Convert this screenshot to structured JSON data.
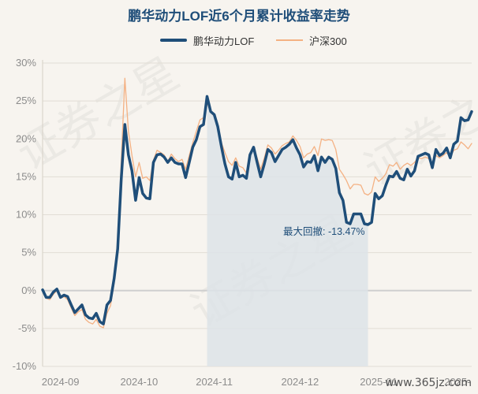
{
  "chart_data": {
    "type": "line",
    "title": "鹏华动力LOF近6个月累计收益率走势",
    "ylim": [
      -10,
      30
    ],
    "yticks": [
      "30%",
      "25%",
      "20%",
      "15%",
      "10%",
      "5%",
      "0%",
      "-5%",
      "-10%"
    ],
    "xticks": [
      "2024-09",
      "2024-10",
      "2024-11",
      "2024-12",
      "2025-01",
      "2025-"
    ],
    "grid": true,
    "legend_position": "top-center",
    "series": [
      {
        "name": "鹏华动力LOF",
        "color": "#1f4e79",
        "values": [
          0.1,
          -0.9,
          -0.9,
          -0.2,
          0.2,
          -0.9,
          -0.6,
          -0.8,
          -1.9,
          -2.9,
          -2.4,
          -1.9,
          -3.2,
          -3.6,
          -3.7,
          -3.0,
          -4.1,
          -4.4,
          -1.9,
          -1.3,
          1.6,
          5.5,
          14.7,
          21.9,
          17.9,
          15.8,
          11.9,
          14.9,
          12.8,
          12.2,
          12.1,
          16.9,
          17.9,
          18.0,
          17.6,
          16.9,
          17.5,
          16.9,
          16.7,
          16.7,
          14.9,
          16.9,
          18.9,
          19.9,
          21.6,
          21.9,
          25.6,
          23.6,
          23.2,
          21.6,
          19.0,
          16.7,
          15.0,
          14.7,
          16.9,
          15.0,
          15.2,
          14.8,
          17.9,
          18.9,
          16.9,
          15.0,
          16.7,
          18.6,
          18.2,
          17.0,
          17.8,
          18.6,
          18.9,
          19.3,
          19.9,
          18.8,
          17.9,
          16.3,
          17.0,
          16.9,
          17.8,
          15.8,
          17.6,
          16.9,
          17.6,
          17.3,
          16.1,
          12.9,
          11.9,
          9.0,
          8.8,
          10.1,
          10.1,
          10.1,
          8.8,
          8.7,
          9.0,
          12.8,
          12.1,
          12.5,
          13.9,
          15.1,
          15.0,
          15.7,
          14.8,
          14.6,
          16.0,
          15.1,
          15.8,
          17.7,
          17.9,
          18.1,
          17.9,
          16.2,
          18.6,
          17.8,
          18.1,
          18.8,
          17.5,
          19.3,
          19.7,
          22.8,
          22.4,
          22.5,
          23.6
        ]
      },
      {
        "name": "沪深300",
        "color": "#f4b183",
        "values": [
          0.0,
          -1.0,
          -1.2,
          -0.5,
          0.0,
          -1.0,
          -0.8,
          -1.2,
          -2.3,
          -3.3,
          -2.8,
          -2.5,
          -3.8,
          -4.2,
          -4.4,
          -3.8,
          -4.7,
          -4.9,
          -3.0,
          -2.0,
          1.0,
          6.5,
          17.0,
          28.0,
          21.0,
          17.8,
          15.0,
          16.9,
          14.8,
          15.0,
          14.5,
          17.2,
          18.5,
          18.2,
          17.9,
          17.0,
          18.0,
          17.4,
          17.0,
          17.3,
          16.0,
          17.8,
          19.5,
          21.0,
          22.5,
          22.8,
          24.8,
          23.5,
          23.0,
          22.0,
          19.5,
          18.2,
          17.0,
          16.5,
          17.5,
          16.4,
          16.2,
          15.5,
          18.0,
          19.0,
          17.5,
          16.0,
          17.5,
          19.2,
          18.8,
          18.0,
          18.5,
          19.1,
          19.4,
          19.6,
          20.4,
          19.8,
          19.0,
          17.5,
          18.0,
          18.2,
          19.0,
          17.8,
          20.0,
          19.8,
          19.9,
          19.8,
          18.6,
          16.0,
          15.3,
          14.5,
          13.4,
          14.0,
          14.0,
          13.9,
          12.8,
          12.6,
          13.0,
          15.0,
          14.4,
          14.8,
          15.4,
          16.6,
          16.4,
          16.9,
          16.0,
          16.5,
          16.8,
          16.5,
          16.9,
          17.5,
          17.4,
          17.6,
          17.4,
          16.8,
          17.8,
          17.5,
          17.8,
          18.2,
          17.6,
          18.5,
          18.7,
          19.6,
          19.2,
          18.7,
          19.4
        ]
      }
    ],
    "max_drawdown": {
      "label": "最大回撤: -13.47%",
      "start_index": 46,
      "end_index": 91,
      "fill_color": "#dde3e7"
    }
  },
  "watermark": {
    "text": "证券之星"
  },
  "site_mark": "www.365jz.com"
}
